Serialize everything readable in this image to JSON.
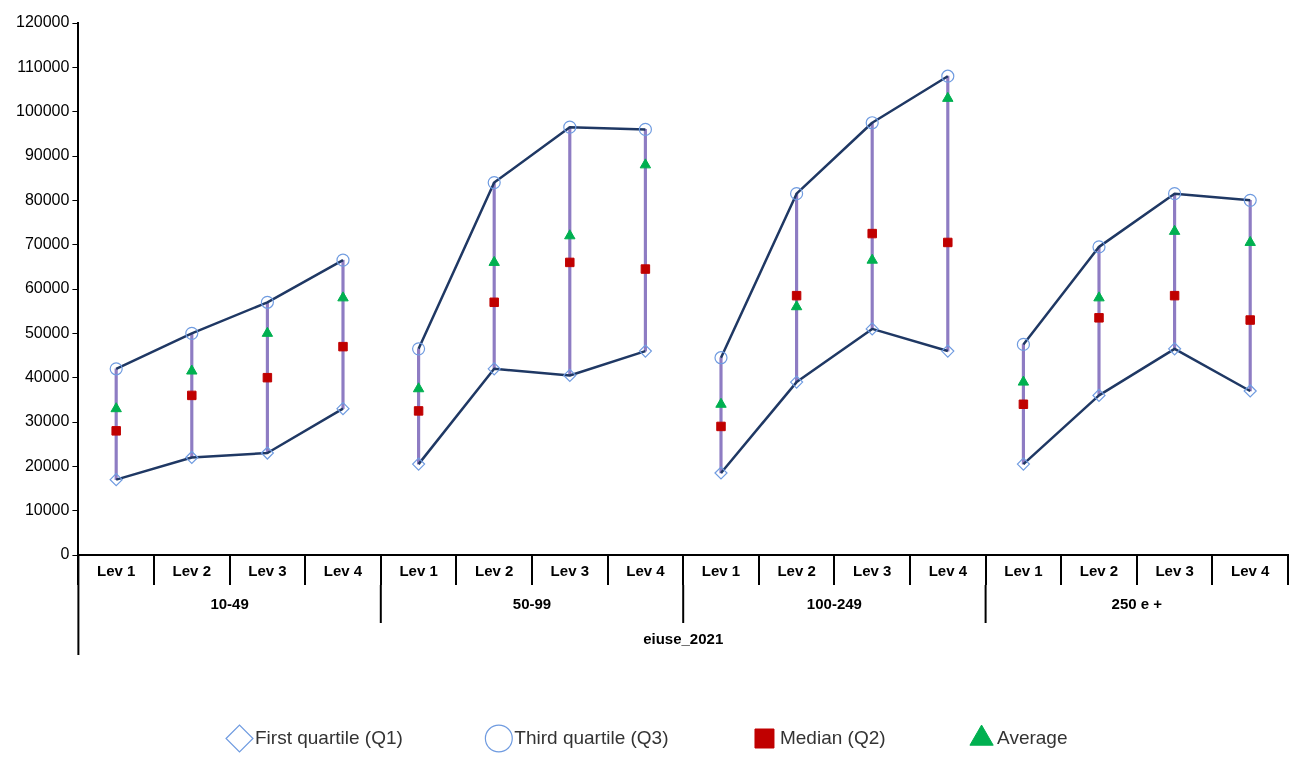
{
  "chart_data": {
    "type": "line",
    "xlabel": "eiuse_2021",
    "categories": [
      "Lev 1",
      "Lev 2",
      "Lev 3",
      "Lev 4",
      "Lev 1",
      "Lev 2",
      "Lev 3",
      "Lev 4",
      "Lev 1",
      "Lev 2",
      "Lev 3",
      "Lev 4",
      "Lev 1",
      "Lev 2",
      "Lev 3",
      "Lev 4"
    ],
    "annotations": [
      "10-49",
      "50-99",
      "100-249",
      "250 e +"
    ],
    "series": [
      {
        "type": "bar",
        "color": "#8e7cc3",
        "base": [
          17000,
          22000,
          23000,
          33000,
          20500,
          42000,
          40500,
          46000,
          18500,
          39000,
          51000,
          46000,
          20500,
          36000,
          46500,
          37000
        ],
        "values": [
          25000,
          28000,
          34000,
          33500,
          26000,
          42000,
          56000,
          50000,
          26000,
          42500,
          46500,
          62000,
          27000,
          33500,
          35000,
          43000
        ]
      },
      {
        "name": "First quartile (Q1)",
        "marker": "diamond",
        "color": "#1f3864",
        "values": [
          17000,
          22000,
          23000,
          33000,
          20500,
          42000,
          40500,
          46000,
          18500,
          39000,
          51000,
          46000,
          20500,
          36000,
          46500,
          37000
        ]
      },
      {
        "name": "Third quartile (Q3)",
        "marker": "circle",
        "color": "#1f3864",
        "values": [
          42000,
          50000,
          57000,
          66500,
          46500,
          84000,
          96500,
          96000,
          44500,
          81500,
          97500,
          108000,
          47500,
          69500,
          81500,
          80000
        ]
      },
      {
        "name": "Median (Q2)",
        "type": "scatter",
        "marker": "square",
        "color": "#c00000",
        "values": [
          28000,
          36000,
          40000,
          47000,
          32500,
          57000,
          66000,
          64500,
          29000,
          58500,
          72500,
          70500,
          34000,
          53500,
          58500,
          53000
        ]
      },
      {
        "name": "Average",
        "type": "scatter",
        "marker": "triangle",
        "color": "#00b050",
        "values": [
          33000,
          41500,
          50000,
          58000,
          37500,
          66000,
          72000,
          88000,
          34000,
          56000,
          66500,
          103000,
          39000,
          58000,
          73000,
          70500
        ]
      }
    ],
    "ylim": [
      0,
      120000
    ],
    "yticks": [
      0,
      10000,
      20000,
      30000,
      40000,
      50000,
      60000,
      70000,
      80000,
      90000,
      100000,
      110000,
      120000
    ],
    "grid": false,
    "legend": "bottom"
  }
}
